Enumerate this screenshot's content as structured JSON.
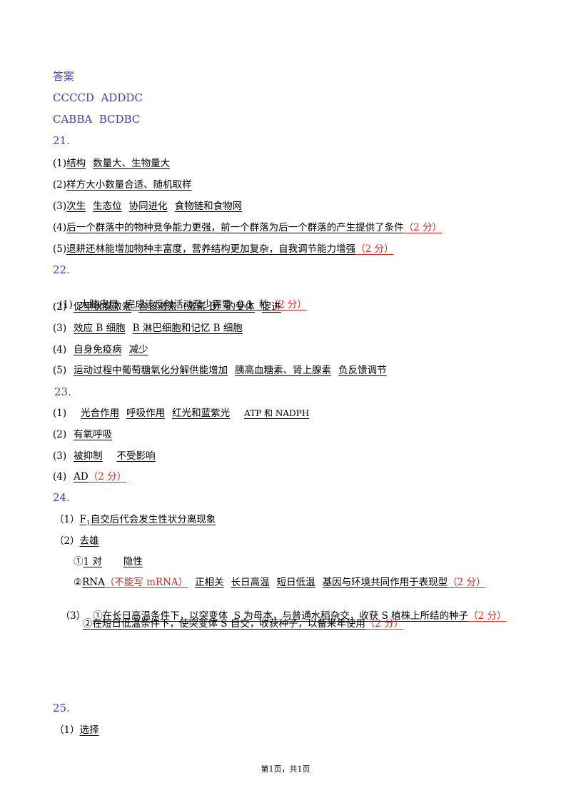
{
  "answer_title": "答案",
  "mc_row1": "CCCCD  ADDDC",
  "mc_row2": "CABBA  BCDBC",
  "q21": {
    "number": "21.",
    "p1": {
      "label": "(1)",
      "a1": "结构",
      "a2": "数量大、生物量大"
    },
    "p2": {
      "label": "(2)",
      "a1": "样方大小数量合适、随机取样"
    },
    "p3": {
      "label": "(3)",
      "a1": "次生",
      "a2": "生态位",
      "a3": "协同进化",
      "a4": "食物链和食物网"
    },
    "p4": {
      "label": "(4)",
      "a1": "后一个群落中的物种竞争能力更强，前一个群落为后一个群落的产生提供了条件",
      "score": "（2 分）"
    },
    "p5": {
      "label": "(5)",
      "a1": "退耕还林能增加物种丰富度，营养结构更加复杂，自我调节能力增强",
      "score": "（2 分）"
    }
  },
  "q22": {
    "number": "22.",
    "p1": {
      "label": "(1)",
      "a1": "大脑皮层",
      "a2": "完成该反射活动至少需要  0.1  秒",
      "score": "（2 分）"
    },
    "p2": {
      "label": "(2)",
      "a1": "促甲状腺激素",
      "a2": "含该激素（激素 B）的受体",
      "a3": "促进"
    },
    "p3": {
      "label": "(3)",
      "a1": "效应 B 细胞",
      "a2": "B 淋巴细胞和记忆 B 细胞"
    },
    "p4": {
      "label": "(4)",
      "a1": "自身免疫病",
      "a2": "减少"
    },
    "p5": {
      "label": "(5)",
      "a1": "运动过程中葡萄糖氧化分解供能增加",
      "a2": "胰高血糖素、肾上腺素",
      "a3": "负反馈调节"
    }
  },
  "q23": {
    "number": "23.",
    "p1": {
      "label": "(1)",
      "a1": "光合作用",
      "a2": "呼吸作用",
      "a3": "红光和蓝紫光",
      "a4": "ATP 和 NADPH"
    },
    "p2": {
      "label": "(2)",
      "a1": "有氧呼吸"
    },
    "p3": {
      "label": "(3)",
      "a1": "被抑制",
      "a2": "不受影响"
    },
    "p4": {
      "label": "(4)",
      "a1": "AD",
      "score": "（2 分）"
    }
  },
  "q24": {
    "number": "24.",
    "p1": {
      "label": "（1）",
      "a1_pre": "F",
      "a1_sub": "1",
      "a1_post": "自交后代会发生性状分离现象"
    },
    "p2": {
      "label": "（2）",
      "a1": "去雄"
    },
    "p2_i": {
      "label": "①",
      "a1": "1 对",
      "a2": "隐性"
    },
    "p2_ii": {
      "label": "②",
      "a1": "RNA",
      "a1_note": "（不能写 mRNA）",
      "a2": "正相关",
      "a3": "长日高温",
      "a4": "短日低温",
      "a5": "基因与环境共同作用于表现型",
      "score": "（2 分）"
    },
    "p3": {
      "label": "（3）",
      "a1": "①在长日高温条件下，以突变体  S 为母本，与普通水稻杂交，收获 S 植株上所结的种子",
      "score": "（2 分）"
    },
    "p3_ii": {
      "a1": "②在短日低温条件下，使突变体 S 自交，收获种子，以备来年使用",
      "score": "（2 分）"
    }
  },
  "q25": {
    "number": "25.",
    "p1": {
      "label": "（1）",
      "a1": "选择"
    }
  },
  "footer": "第1页，共1页"
}
